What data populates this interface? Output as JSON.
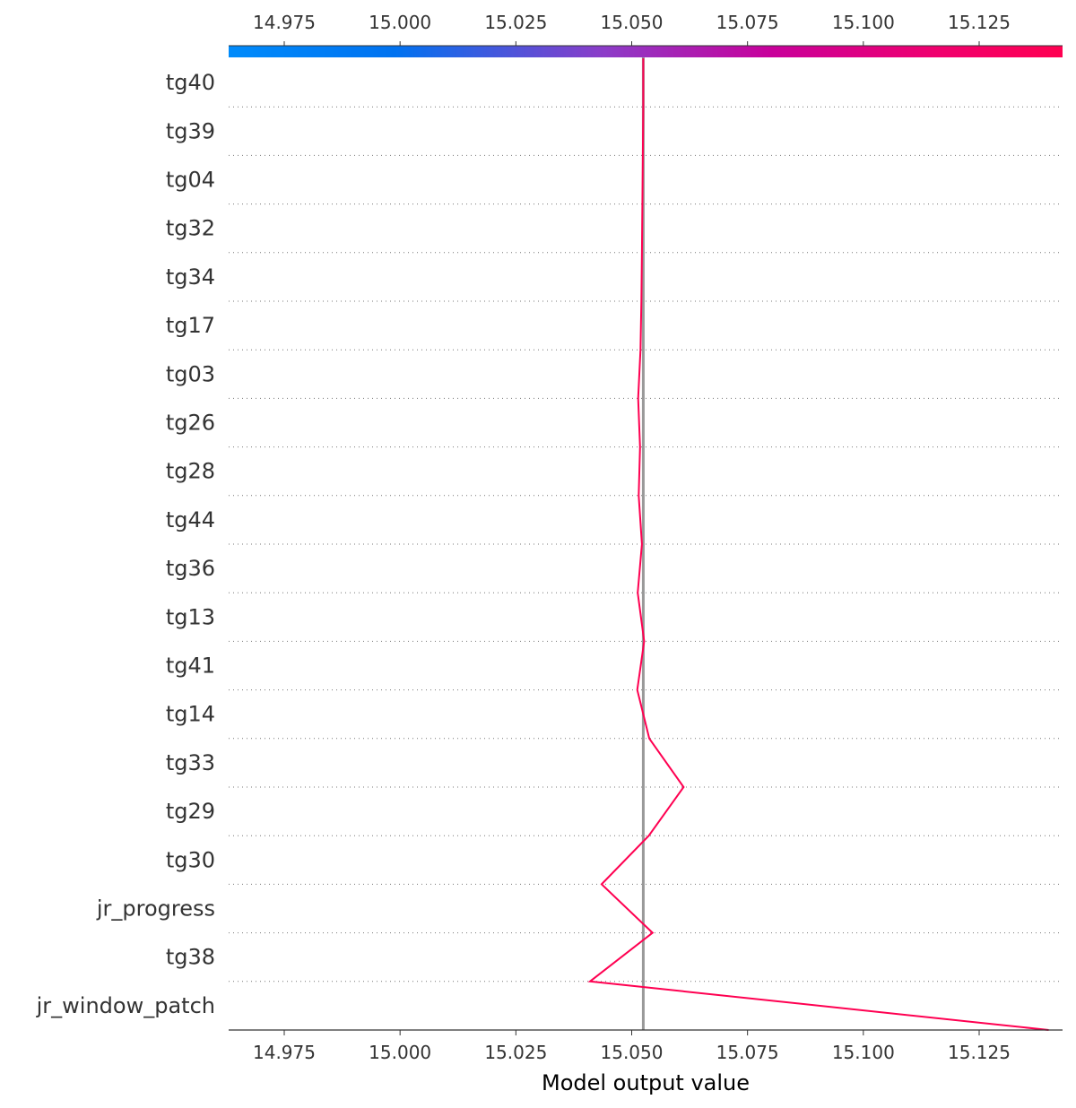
{
  "chart_data": {
    "type": "line",
    "title": "",
    "xlabel": "Model output value",
    "ylabel": "",
    "xlim": [
      14.963,
      15.143
    ],
    "x_ticks": [
      "14.975",
      "15.000",
      "15.025",
      "15.050",
      "15.075",
      "15.100",
      "15.125"
    ],
    "x_tick_values": [
      14.975,
      15.0,
      15.025,
      15.05,
      15.075,
      15.1,
      15.125
    ],
    "base_value": 15.0525,
    "colorbar": {
      "low_color": "#008bfb",
      "high_color": "#ff0051",
      "mid_color": "#8c3cc8"
    },
    "line_color": "#ff0051",
    "base_line_color": "#999999",
    "grid": "dotted-horizontal",
    "features": [
      "tg40",
      "tg39",
      "tg04",
      "tg32",
      "tg34",
      "tg17",
      "tg03",
      "tg26",
      "tg28",
      "tg44",
      "tg36",
      "tg13",
      "tg41",
      "tg14",
      "tg33",
      "tg29",
      "tg30",
      "jr_progress",
      "tg38",
      "jr_window_patch"
    ],
    "cumulative_values": [
      15.14,
      15.041,
      15.0545,
      15.0435,
      15.0537,
      15.0612,
      15.0538,
      15.0512,
      15.0527,
      15.0513,
      15.0522,
      15.0515,
      15.0518,
      15.0514,
      15.0519,
      15.0521,
      15.0522,
      15.0523,
      15.0524,
      15.0525,
      15.0525
    ]
  }
}
